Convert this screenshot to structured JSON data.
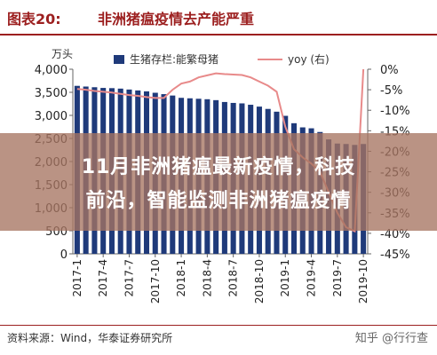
{
  "header": {
    "figure_label": "图表20:",
    "title": "非洲猪瘟疫情去产能严重"
  },
  "unit_label": "万头",
  "overlay": {
    "line1": "11月非洲猪瘟最新疫情，科技",
    "line2": "前沿，智能监测非洲猪瘟疫情"
  },
  "footer": {
    "source": "资料来源：Wind，华泰证券研究所",
    "brand": "知乎 @行行查"
  },
  "colors": {
    "bar": "#1f3a7a",
    "line": "#e88a8a",
    "accent": "#9c1f1f",
    "overlay": "#a67462"
  },
  "chart_data": {
    "type": "bar",
    "title": "非洲猪瘟疫情去产能严重",
    "ylabel": "万头",
    "ylim": [
      0,
      4000
    ],
    "y2lim": [
      -45,
      0
    ],
    "yticks": [
      "4,000",
      "3,500",
      "3,000",
      "2,500",
      "2,000",
      "1,500",
      "1,000",
      "500",
      "0"
    ],
    "y2ticks": [
      "0%",
      "-5%",
      "-10%",
      "-15%",
      "-20%",
      "-25%",
      "-30%",
      "-35%",
      "-40%",
      "-45%"
    ],
    "x_tick_labels": [
      "2017-1",
      "2017-4",
      "2017-7",
      "2017-10",
      "2018-1",
      "2018-4",
      "2018-7",
      "2018-10",
      "2019-1",
      "2019-4",
      "2019-7",
      "2019-10"
    ],
    "legend_position": "top",
    "categories": [
      "2017-1",
      "2017-2",
      "2017-3",
      "2017-4",
      "2017-5",
      "2017-6",
      "2017-7",
      "2017-8",
      "2017-9",
      "2017-10",
      "2017-11",
      "2017-12",
      "2018-1",
      "2018-2",
      "2018-3",
      "2018-4",
      "2018-5",
      "2018-6",
      "2018-7",
      "2018-8",
      "2018-9",
      "2018-10",
      "2018-11",
      "2018-12",
      "2019-1",
      "2019-2",
      "2019-3",
      "2019-4",
      "2019-5",
      "2019-6",
      "2019-7",
      "2019-8",
      "2019-9",
      "2019-10"
    ],
    "series": [
      {
        "name": "生猪存栏:能繁母猪",
        "axis": "left",
        "values": [
          3640,
          3625,
          3610,
          3595,
          3590,
          3580,
          3560,
          3540,
          3520,
          3490,
          3460,
          3430,
          3380,
          3370,
          3360,
          3350,
          3330,
          3290,
          3270,
          3260,
          3230,
          3190,
          3140,
          3080,
          2990,
          2830,
          2740,
          2720,
          2640,
          2480,
          2390,
          2380,
          2360,
          2380
        ]
      },
      {
        "name": "yoy (右)",
        "axis": "right",
        "values": [
          -4.8,
          -5.0,
          -5.3,
          -5.5,
          -5.7,
          -6.0,
          -6.3,
          -6.5,
          -6.8,
          -7.0,
          -7.0,
          -5.0,
          -3.5,
          -3.0,
          -2.0,
          -1.5,
          -1.0,
          -1.2,
          -1.3,
          -1.4,
          -2.0,
          -3.0,
          -4.0,
          -5.5,
          -14.0,
          -19.5,
          -21.5,
          -23.0,
          -25.0,
          -30.0,
          -35.0,
          -38.5,
          -39.5,
          0.0
        ]
      }
    ]
  }
}
